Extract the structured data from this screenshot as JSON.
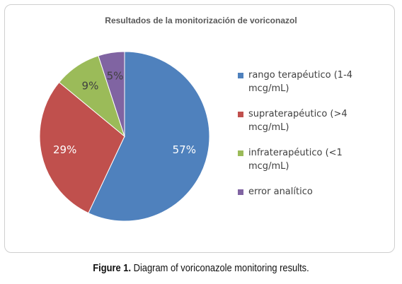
{
  "chart_data": {
    "type": "pie",
    "title": "Resultados de la monitorización de voriconazol",
    "series": [
      {
        "name": "rango terapéutico (1-4 mcg/mL)",
        "value": 57,
        "label": "57%",
        "color": "#4f81bd",
        "label_color": "#ffffff"
      },
      {
        "name": "supraterapéutico (>4 mcg/mL)",
        "value": 29,
        "label": "29%",
        "color": "#c0504d",
        "label_color": "#ffffff"
      },
      {
        "name": "infraterapéutico (<1 mcg/mL)",
        "value": 9,
        "label": "9%",
        "color": "#9bbb59",
        "label_color": "#404040"
      },
      {
        "name": "error analítico",
        "value": 5,
        "label": "5%",
        "color": "#8064a2",
        "label_color": "#404040"
      }
    ],
    "legend": {
      "placement": "right",
      "lines": [
        [
          "rango terapéutico (1-4",
          "mcg/mL)"
        ],
        [
          "supraterapéutico (>4",
          "mcg/mL)"
        ],
        [
          "infraterapéutico (<1",
          "mcg/mL)"
        ],
        [
          "error analítico"
        ]
      ]
    }
  },
  "caption": {
    "prefix": "Figure 1.",
    "text": " Diagram of voriconazole monitoring results."
  }
}
